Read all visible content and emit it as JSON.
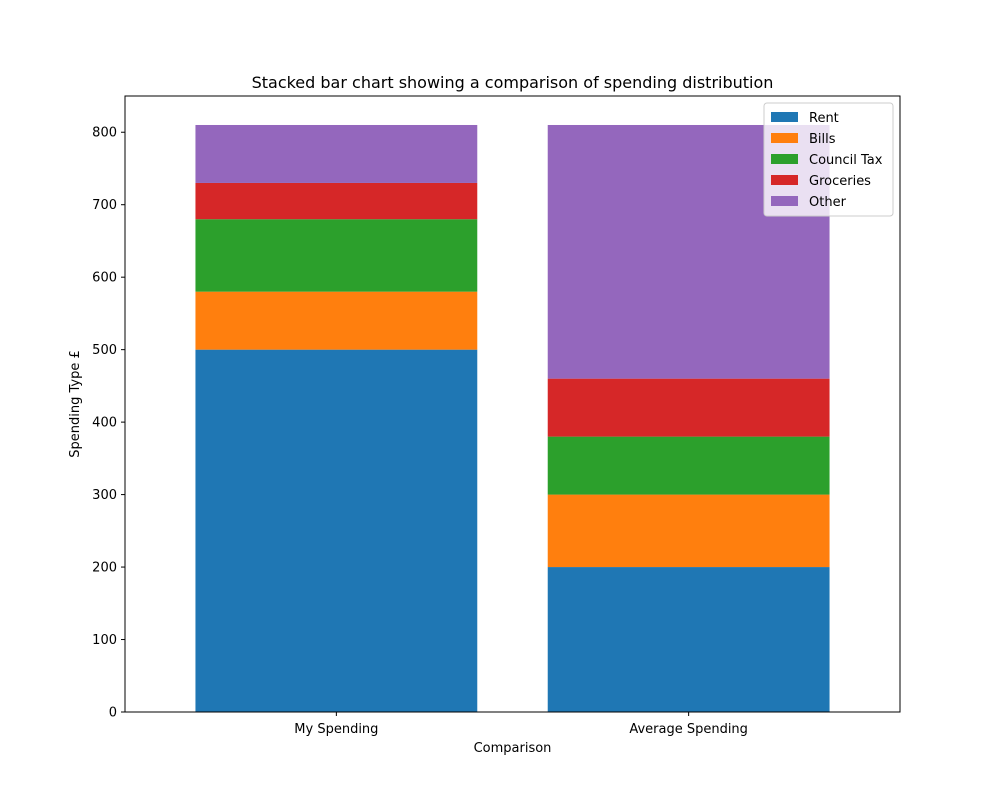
{
  "chart_data": {
    "type": "bar",
    "stacked": true,
    "title": "Stacked bar chart showing a comparison of spending distribution",
    "xlabel": "Comparison",
    "ylabel": "Spending Type £",
    "categories": [
      "My Spending",
      "Average Spending"
    ],
    "series": [
      {
        "name": "Rent",
        "values": [
          500,
          200
        ],
        "color": "#1f77b4"
      },
      {
        "name": "Bills",
        "values": [
          80,
          100
        ],
        "color": "#ff7f0e"
      },
      {
        "name": "Council Tax",
        "values": [
          100,
          80
        ],
        "color": "#2ca02c"
      },
      {
        "name": "Groceries",
        "values": [
          50,
          80
        ],
        "color": "#d62728"
      },
      {
        "name": "Other",
        "values": [
          80,
          350
        ],
        "color": "#9467bd"
      }
    ],
    "ylim": [
      0,
      850
    ],
    "yticks": [
      0,
      100,
      200,
      300,
      400,
      500,
      600,
      700,
      800
    ],
    "grid": false,
    "legend_position": "top-right"
  }
}
